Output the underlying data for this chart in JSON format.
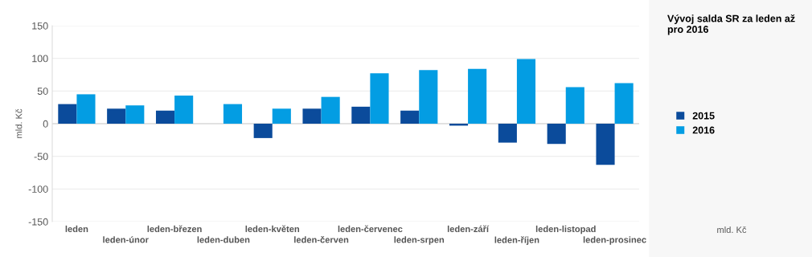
{
  "chart_data": {
    "type": "bar",
    "title": "Vývoj salda SR za leden až pro 2016",
    "ylabel": "mld. Kč",
    "annotations": [
      "mld. Kč"
    ],
    "categories": [
      "leden",
      "leden-únor",
      "leden-březen",
      "leden-duben",
      "leden-květen",
      "leden-červen",
      "leden-červenec",
      "leden-srpen",
      "leden-září",
      "leden-říjen",
      "leden-listopad",
      "leden-prosinec"
    ],
    "series": [
      {
        "name": "2015",
        "color": "#0b4b9b",
        "values": [
          30,
          23,
          20,
          0,
          -22,
          23,
          26,
          20,
          -3,
          -29,
          -31,
          -63
        ]
      },
      {
        "name": "2016",
        "color": "#039de3",
        "values": [
          45,
          28,
          43,
          30,
          23,
          41,
          77,
          82,
          84,
          99,
          56,
          62
        ]
      }
    ],
    "ylim": [
      -150,
      150
    ],
    "yticks": [
      -150,
      -100,
      -50,
      0,
      50,
      100,
      150
    ],
    "grid": "y",
    "legend": "right"
  }
}
